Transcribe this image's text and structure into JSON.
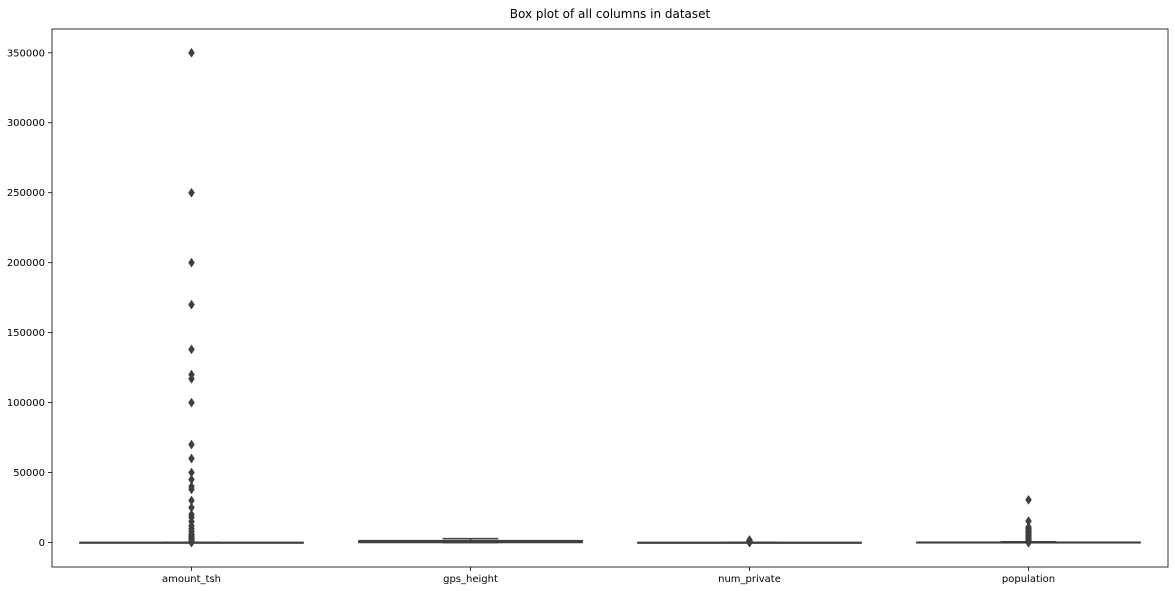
{
  "chart_data": {
    "type": "box",
    "title": "Box plot of all columns in dataset",
    "xlabel": "",
    "ylabel": "",
    "ylim": [
      -17500,
      367000
    ],
    "yticks": [
      0,
      50000,
      100000,
      150000,
      200000,
      250000,
      300000,
      350000
    ],
    "ytick_labels": [
      "0",
      "50000",
      "100000",
      "150000",
      "200000",
      "250000",
      "300000",
      "350000"
    ],
    "grid": false,
    "categories": [
      "amount_tsh",
      "gps_height",
      "num_private",
      "population"
    ],
    "boxes": [
      {
        "name": "amount_tsh",
        "color": "#3274a1",
        "q1": 0,
        "median": 0,
        "q3": 20,
        "whisker_low": 0,
        "whisker_high": 50,
        "outliers": [
          350000,
          250000,
          200000,
          170000,
          138000,
          120000,
          117000,
          100000,
          70000,
          60000,
          50000,
          45000,
          40000,
          38000,
          30000,
          25000,
          20000,
          18000,
          15000,
          12000,
          10000,
          8000,
          6000,
          5000,
          4000,
          3000,
          2000,
          1000,
          500,
          250,
          100,
          -100
        ]
      },
      {
        "name": "gps_height",
        "color": "#e1812c",
        "q1": 0,
        "median": 369,
        "q3": 1319,
        "whisker_low": -90,
        "whisker_high": 2770,
        "outliers": []
      },
      {
        "name": "num_private",
        "color": "#3a923a",
        "q1": 0,
        "median": 0,
        "q3": 0,
        "whisker_low": 0,
        "whisker_high": 0,
        "outliers": [
          1776,
          1400,
          1000,
          800,
          600,
          400,
          200,
          100,
          50,
          -50
        ]
      },
      {
        "name": "population",
        "color": "#c03d3e",
        "q1": 0,
        "median": 25,
        "q3": 215,
        "whisker_low": 0,
        "whisker_high": 537,
        "outliers": [
          30500,
          15300,
          11000,
          10000,
          9000,
          8000,
          7000,
          6000,
          5000,
          4000,
          3000,
          2000,
          1500,
          1000,
          800,
          -200
        ]
      }
    ]
  }
}
